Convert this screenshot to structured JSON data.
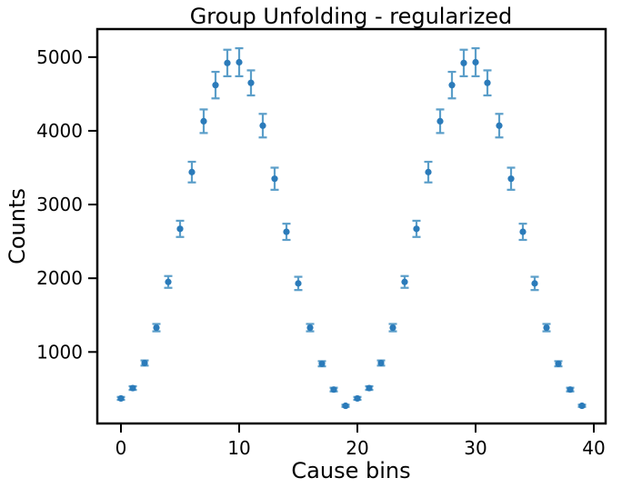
{
  "chart_data": {
    "type": "scatter",
    "title": "Group Unfolding - regularized",
    "xlabel": "Cause bins",
    "ylabel": "Counts",
    "xlim": [
      -2,
      41
    ],
    "ylim": [
      30,
      5380
    ],
    "xticks": [
      0,
      10,
      20,
      30,
      40
    ],
    "yticks": [
      1000,
      2000,
      3000,
      4000,
      5000
    ],
    "grid": false,
    "marker_color": "#2b7bba",
    "errorbar_color": "#5b9ec9",
    "series": [
      {
        "x": [
          0,
          1,
          2,
          3,
          4,
          5,
          6,
          7,
          8,
          9,
          10,
          11,
          12,
          13,
          14,
          15,
          16,
          17,
          18,
          19,
          20,
          21,
          22,
          23,
          24,
          25,
          26,
          27,
          28,
          29,
          30,
          31,
          32,
          33,
          34,
          35,
          36,
          37,
          38,
          39
        ],
        "y": [
          370,
          510,
          850,
          1330,
          1950,
          2670,
          3440,
          4130,
          4620,
          4920,
          4930,
          4650,
          4070,
          3350,
          2630,
          1930,
          1330,
          840,
          490,
          270,
          370,
          510,
          850,
          1330,
          1950,
          2670,
          3440,
          4130,
          4620,
          4920,
          4930,
          4650,
          4070,
          3350,
          2630,
          1930,
          1330,
          840,
          490,
          270
        ],
        "yerr": [
          20,
          25,
          35,
          50,
          80,
          110,
          140,
          160,
          180,
          180,
          190,
          170,
          160,
          150,
          110,
          90,
          50,
          35,
          25,
          15,
          20,
          25,
          35,
          50,
          80,
          110,
          140,
          160,
          180,
          180,
          190,
          170,
          160,
          150,
          110,
          90,
          50,
          35,
          25,
          15
        ]
      }
    ]
  }
}
